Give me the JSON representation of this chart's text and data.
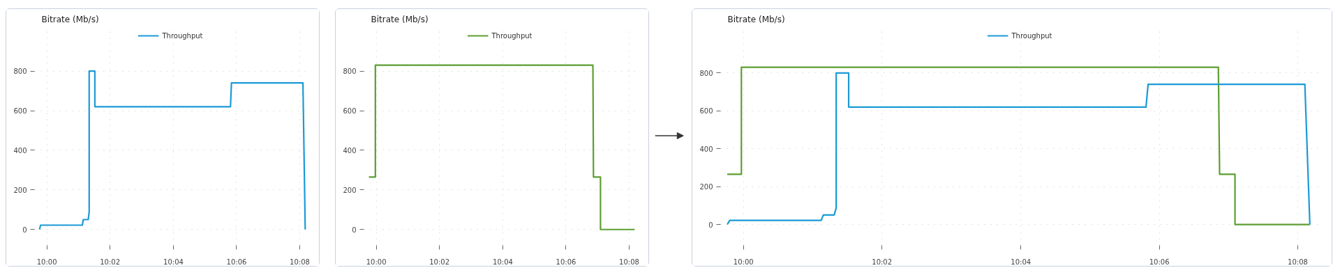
{
  "chart_data": [
    {
      "type": "line",
      "title": "Bitrate (Mb/s)",
      "xlim": [
        9.9935,
        10.137
      ],
      "ylim": [
        -80,
        1020
      ],
      "xticks": [
        {
          "value": 10,
          "label": "10:00"
        },
        {
          "value": 10.0333,
          "label": "10:02"
        },
        {
          "value": 10.0667,
          "label": "10:04"
        },
        {
          "value": 10.1,
          "label": "10:06"
        },
        {
          "value": 10.1333,
          "label": "10:08"
        }
      ],
      "yticks": [
        0,
        200,
        400,
        600,
        800
      ],
      "grid": true,
      "legend": "top",
      "line_style": "solid",
      "series": [
        {
          "name": "Throughput",
          "color": "#1a9ad6",
          "x": [
            9.9961,
            9.9967,
            10.0187,
            10.0192,
            10.0218,
            10.0223,
            10.0223,
            10.0253,
            10.0253,
            10.0968,
            10.0973,
            10.135,
            10.1362
          ],
          "values": [
            0,
            22,
            22,
            50,
            50,
            88,
            800,
            800,
            620,
            620,
            740,
            740,
            0
          ]
        }
      ]
    },
    {
      "type": "line",
      "title": "Bitrate (Mb/s)",
      "xlim": [
        9.9935,
        10.137
      ],
      "ylim": [
        -80,
        1020
      ],
      "xticks": [
        {
          "value": 10,
          "label": "10:00"
        },
        {
          "value": 10.0333,
          "label": "10:02"
        },
        {
          "value": 10.0667,
          "label": "10:04"
        },
        {
          "value": 10.1,
          "label": "10:06"
        },
        {
          "value": 10.1333,
          "label": "10:08"
        }
      ],
      "yticks": [
        0,
        200,
        400,
        600,
        800
      ],
      "grid": true,
      "legend": "top",
      "line_style": "solid",
      "series": [
        {
          "name": "Throughput",
          "color": "#5c9e31",
          "x": [
            9.9961,
            9.9995,
            9.9995,
            10.1142,
            10.1145,
            10.1182,
            10.1182,
            10.1362
          ],
          "values": [
            265,
            265,
            830,
            830,
            265,
            265,
            0,
            0
          ]
        }
      ]
    },
    {
      "type": "line",
      "title": "Bitrate (Mb/s)",
      "xlim": [
        9.9945,
        10.1385
      ],
      "ylim": [
        -110,
        1040
      ],
      "xticks": [
        {
          "value": 10,
          "label": "10:00"
        },
        {
          "value": 10.0333,
          "label": "10:02"
        },
        {
          "value": 10.0667,
          "label": "10:04"
        },
        {
          "value": 10.1,
          "label": "10:06"
        },
        {
          "value": 10.1333,
          "label": "10:08"
        }
      ],
      "yticks": [
        0,
        200,
        400,
        600,
        800
      ],
      "grid": true,
      "legend": "top",
      "line_style": "solid",
      "series": [
        {
          "color": "#5c9e31",
          "x": [
            9.9961,
            9.9995,
            9.9995,
            10.1142,
            10.1145,
            10.1182,
            10.1182,
            10.1362
          ],
          "values": [
            265,
            265,
            830,
            830,
            265,
            265,
            0,
            0
          ]
        },
        {
          "name": "Throughput",
          "color": "#1a9ad6",
          "x": [
            9.9961,
            9.9967,
            10.0187,
            10.0192,
            10.0218,
            10.0223,
            10.0223,
            10.0253,
            10.0253,
            10.0968,
            10.0973,
            10.135,
            10.1362
          ],
          "values": [
            0,
            22,
            22,
            50,
            50,
            88,
            800,
            800,
            620,
            620,
            740,
            740,
            0
          ]
        }
      ]
    }
  ]
}
